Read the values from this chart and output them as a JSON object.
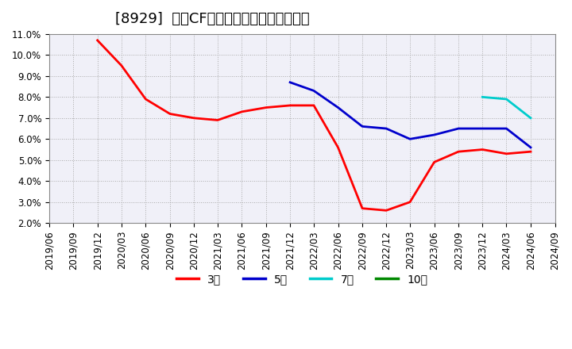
{
  "title": "[8929]  営業CFマージンの標準偏差の推移",
  "ylim": [
    0.02,
    0.11
  ],
  "yticks": [
    0.02,
    0.03,
    0.04,
    0.05,
    0.06,
    0.07,
    0.08,
    0.09,
    0.1,
    0.11
  ],
  "background_color": "#ffffff",
  "plot_background": "#f0f0f8",
  "grid_color": "#aaaaaa",
  "series": {
    "3year": {
      "color": "#ff0000",
      "label": "3年",
      "points": [
        [
          "2019-09-01",
          null
        ],
        [
          "2019-12-01",
          0.107
        ],
        [
          "2020-03-01",
          0.095
        ],
        [
          "2020-06-01",
          0.079
        ],
        [
          "2020-09-01",
          0.072
        ],
        [
          "2020-12-01",
          0.07
        ],
        [
          "2021-03-01",
          0.069
        ],
        [
          "2021-06-01",
          0.073
        ],
        [
          "2021-09-01",
          0.075
        ],
        [
          "2021-12-01",
          0.076
        ],
        [
          "2022-03-01",
          0.076
        ],
        [
          "2022-06-01",
          0.056
        ],
        [
          "2022-09-01",
          0.027
        ],
        [
          "2022-12-01",
          0.026
        ],
        [
          "2023-03-01",
          0.03
        ],
        [
          "2023-06-01",
          0.049
        ],
        [
          "2023-09-01",
          0.054
        ],
        [
          "2023-12-01",
          0.055
        ],
        [
          "2024-03-01",
          0.053
        ],
        [
          "2024-06-01",
          0.054
        ]
      ]
    },
    "5year": {
      "color": "#0000cc",
      "label": "5年",
      "points": [
        [
          "2021-12-01",
          0.087
        ],
        [
          "2022-03-01",
          0.083
        ],
        [
          "2022-06-01",
          0.075
        ],
        [
          "2022-09-01",
          0.066
        ],
        [
          "2022-12-01",
          0.065
        ],
        [
          "2023-03-01",
          0.06
        ],
        [
          "2023-06-01",
          0.062
        ],
        [
          "2023-09-01",
          0.065
        ],
        [
          "2023-12-01",
          0.065
        ],
        [
          "2024-03-01",
          0.065
        ],
        [
          "2024-06-01",
          0.056
        ]
      ]
    },
    "7year": {
      "color": "#00cccc",
      "label": "7年",
      "points": [
        [
          "2023-12-01",
          0.08
        ],
        [
          "2024-03-01",
          0.079
        ],
        [
          "2024-06-01",
          0.07
        ]
      ]
    },
    "10year": {
      "color": "#008800",
      "label": "10年",
      "points": []
    }
  },
  "legend_entries": [
    "3年",
    "5年",
    "7年",
    "10年"
  ],
  "legend_colors": [
    "#ff0000",
    "#0000cc",
    "#00cccc",
    "#008800"
  ],
  "title_fontsize": 13,
  "tick_fontsize": 8.5
}
